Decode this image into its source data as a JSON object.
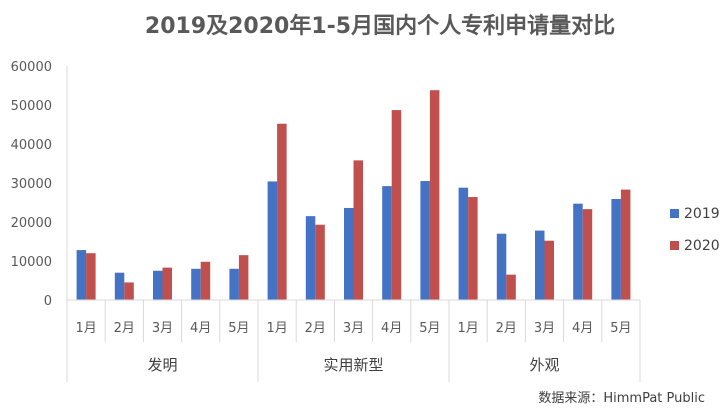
{
  "chart_data": {
    "type": "bar",
    "title": "2019及2020年1-5月国内个人专利申请量对比",
    "source": "数据来源：HimmPat Public",
    "groups": [
      {
        "name": "发明",
        "months": [
          "1月",
          "2月",
          "3月",
          "4月",
          "5月"
        ]
      },
      {
        "name": "实用新型",
        "months": [
          "1月",
          "2月",
          "3月",
          "4月",
          "5月"
        ]
      },
      {
        "name": "外观",
        "months": [
          "1月",
          "2月",
          "3月",
          "4月",
          "5月"
        ]
      }
    ],
    "series": [
      {
        "name": "2019",
        "color": "#4472C4",
        "values": [
          12800,
          7000,
          7500,
          8000,
          8000,
          30400,
          21500,
          23600,
          29200,
          30500,
          28800,
          17000,
          17800,
          24700,
          25900
        ]
      },
      {
        "name": "2020",
        "color": "#C0504D",
        "values": [
          12000,
          4500,
          8300,
          9800,
          11500,
          45200,
          19300,
          35800,
          48700,
          53800,
          26400,
          6500,
          15200,
          23300,
          28300
        ]
      }
    ],
    "ylim": [
      0,
      60000
    ],
    "yticks": [
      0,
      10000,
      20000,
      30000,
      40000,
      50000,
      60000
    ],
    "legend_position": "right",
    "grid": false
  }
}
